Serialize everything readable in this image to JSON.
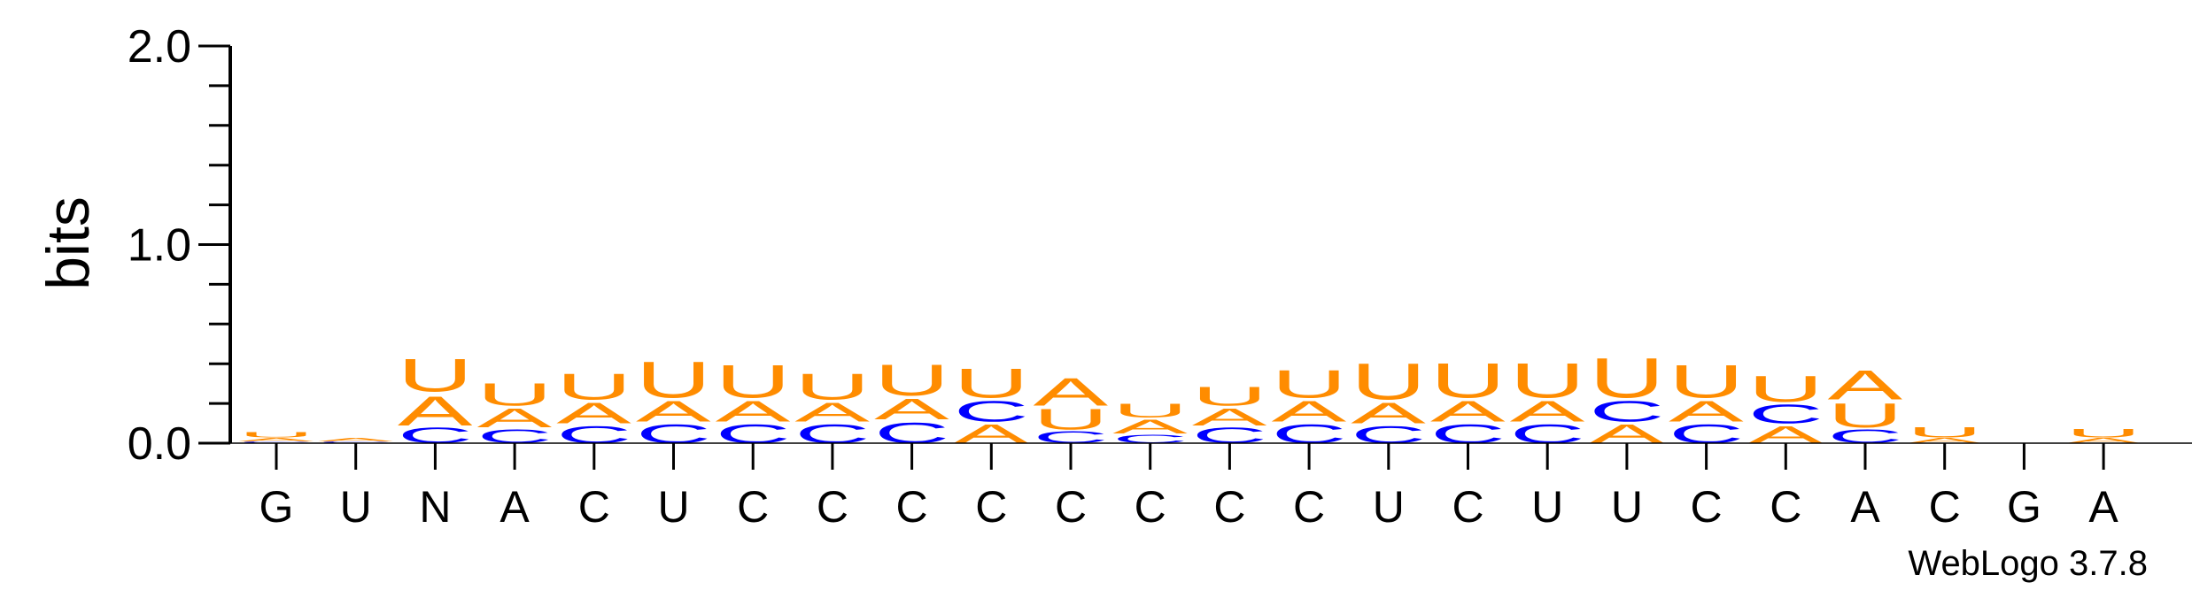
{
  "chart_data": {
    "type": "sequence-logo",
    "title": "",
    "xlabel": "",
    "ylabel": "bits",
    "ylim": [
      0,
      2.0
    ],
    "yticks": [
      "0.0",
      "1.0",
      "2.0"
    ],
    "x": [
      "G",
      "U",
      "N",
      "A",
      "C",
      "U",
      "C",
      "C",
      "C",
      "C",
      "C",
      "C",
      "C",
      "C",
      "U",
      "C",
      "U",
      "U",
      "C",
      "C",
      "A",
      "C",
      "G",
      "A"
    ],
    "colors": {
      "A": "#ff8c00",
      "U": "#ff8c00",
      "G": "#ff8c00",
      "C": "#0000ff"
    },
    "columns": [
      {
        "C": 0.01,
        "A": 0.02,
        "U": 0.03
      },
      {
        "C": 0.01,
        "A": 0.02
      },
      {
        "C": 0.09,
        "A": 0.17,
        "U": 0.19
      },
      {
        "C": 0.08,
        "A": 0.11,
        "U": 0.13
      },
      {
        "C": 0.1,
        "A": 0.12,
        "U": 0.15
      },
      {
        "C": 0.11,
        "A": 0.12,
        "U": 0.21
      },
      {
        "C": 0.11,
        "A": 0.12,
        "U": 0.19
      },
      {
        "C": 0.11,
        "A": 0.11,
        "U": 0.15
      },
      {
        "C": 0.12,
        "A": 0.12,
        "U": 0.18
      },
      {
        "C": 0.12,
        "A": 0.11,
        "U": 0.17
      },
      {
        "C": 0.07,
        "U": 0.12,
        "A": 0.16
      },
      {
        "C": 0.05,
        "A": 0.08,
        "U": 0.08
      },
      {
        "C": 0.09,
        "U": 0.11,
        "A": 0.1
      },
      {
        "C": 0.11,
        "A": 0.12,
        "U": 0.16
      },
      {
        "C": 0.1,
        "A": 0.12,
        "U": 0.21
      },
      {
        "C": 0.11,
        "A": 0.12,
        "U": 0.2
      },
      {
        "C": 0.11,
        "A": 0.12,
        "U": 0.2
      },
      {
        "C": 0.12,
        "A": 0.11,
        "U": 0.23
      },
      {
        "C": 0.11,
        "A": 0.12,
        "U": 0.19
      },
      {
        "C": 0.11,
        "A": 0.1,
        "U": 0.15
      },
      {
        "C": 0.08,
        "U": 0.14,
        "A": 0.17
      },
      {
        "A": 0.03,
        "U": 0.06
      },
      {},
      {
        "A": 0.03,
        "U": 0.05
      }
    ],
    "credit": "WebLogo 3.7.8"
  }
}
